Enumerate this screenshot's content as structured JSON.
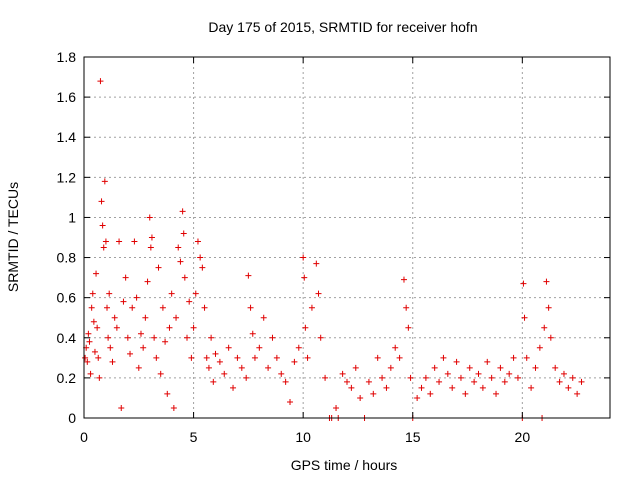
{
  "chart_data": {
    "type": "scatter",
    "title": "Day 175 of 2015, SRMTID for receiver hofn",
    "xlabel": "GPS time / hours",
    "ylabel": "SRMTID / TECUs",
    "xlim": [
      0,
      24
    ],
    "ylim": [
      0,
      1.8
    ],
    "xticks": [
      0,
      5,
      10,
      15,
      20
    ],
    "yticks": [
      0,
      0.2,
      0.4,
      0.6,
      0.8,
      1,
      1.2,
      1.4,
      1.6,
      1.8
    ],
    "ytick_labels": [
      "0",
      "0.2",
      "0.4",
      "0.6",
      "0.8",
      "1",
      "1.2",
      "1.4",
      "1.6",
      "1.8"
    ],
    "grid": true,
    "marker": "+",
    "color": "#e00000",
    "series": [
      {
        "name": "SRMTID",
        "points": [
          [
            0.05,
            0.3
          ],
          [
            0.1,
            0.35
          ],
          [
            0.15,
            0.28
          ],
          [
            0.2,
            0.42
          ],
          [
            0.25,
            0.38
          ],
          [
            0.3,
            0.22
          ],
          [
            0.35,
            0.55
          ],
          [
            0.4,
            0.62
          ],
          [
            0.45,
            0.48
          ],
          [
            0.5,
            0.33
          ],
          [
            0.55,
            0.72
          ],
          [
            0.6,
            0.45
          ],
          [
            0.65,
            0.3
          ],
          [
            0.7,
            0.2
          ],
          [
            0.75,
            1.68
          ],
          [
            0.8,
            1.08
          ],
          [
            0.85,
            0.96
          ],
          [
            0.9,
            0.85
          ],
          [
            0.95,
            1.18
          ],
          [
            1.0,
            0.88
          ],
          [
            1.05,
            0.55
          ],
          [
            1.1,
            0.4
          ],
          [
            1.15,
            0.62
          ],
          [
            1.2,
            0.35
          ],
          [
            1.3,
            0.28
          ],
          [
            1.4,
            0.5
          ],
          [
            1.5,
            0.45
          ],
          [
            1.6,
            0.88
          ],
          [
            1.7,
            0.05
          ],
          [
            1.8,
            0.58
          ],
          [
            1.9,
            0.7
          ],
          [
            2.0,
            0.4
          ],
          [
            2.1,
            0.32
          ],
          [
            2.2,
            0.55
          ],
          [
            2.3,
            0.88
          ],
          [
            2.4,
            0.6
          ],
          [
            2.5,
            0.25
          ],
          [
            2.6,
            0.42
          ],
          [
            2.7,
            0.35
          ],
          [
            2.8,
            0.5
          ],
          [
            2.9,
            0.68
          ],
          [
            3.0,
            1.0
          ],
          [
            3.05,
            0.85
          ],
          [
            3.1,
            0.9
          ],
          [
            3.2,
            0.4
          ],
          [
            3.3,
            0.3
          ],
          [
            3.4,
            0.75
          ],
          [
            3.5,
            0.22
          ],
          [
            3.6,
            0.55
          ],
          [
            3.7,
            0.38
          ],
          [
            3.8,
            0.12
          ],
          [
            3.9,
            0.45
          ],
          [
            4.0,
            0.62
          ],
          [
            4.1,
            0.05
          ],
          [
            4.2,
            0.5
          ],
          [
            4.3,
            0.85
          ],
          [
            4.4,
            0.78
          ],
          [
            4.5,
            1.03
          ],
          [
            4.55,
            0.92
          ],
          [
            4.6,
            0.7
          ],
          [
            4.7,
            0.4
          ],
          [
            4.8,
            0.58
          ],
          [
            4.9,
            0.3
          ],
          [
            5.0,
            0.45
          ],
          [
            5.1,
            0.62
          ],
          [
            5.2,
            0.88
          ],
          [
            5.3,
            0.8
          ],
          [
            5.4,
            0.75
          ],
          [
            5.5,
            0.55
          ],
          [
            5.6,
            0.3
          ],
          [
            5.7,
            0.25
          ],
          [
            5.8,
            0.4
          ],
          [
            5.9,
            0.18
          ],
          [
            6.0,
            0.32
          ],
          [
            6.2,
            0.28
          ],
          [
            6.4,
            0.22
          ],
          [
            6.6,
            0.35
          ],
          [
            6.8,
            0.15
          ],
          [
            7.0,
            0.3
          ],
          [
            7.2,
            0.25
          ],
          [
            7.4,
            0.2
          ],
          [
            7.5,
            0.71
          ],
          [
            7.6,
            0.55
          ],
          [
            7.7,
            0.42
          ],
          [
            7.8,
            0.3
          ],
          [
            8.0,
            0.35
          ],
          [
            8.2,
            0.5
          ],
          [
            8.4,
            0.25
          ],
          [
            8.6,
            0.4
          ],
          [
            8.8,
            0.3
          ],
          [
            9.0,
            0.22
          ],
          [
            9.2,
            0.18
          ],
          [
            9.4,
            0.08
          ],
          [
            9.6,
            0.28
          ],
          [
            9.8,
            0.35
          ],
          [
            10.0,
            0.8
          ],
          [
            10.05,
            0.7
          ],
          [
            10.1,
            0.45
          ],
          [
            10.2,
            0.3
          ],
          [
            10.4,
            0.55
          ],
          [
            10.6,
            0.77
          ],
          [
            10.7,
            0.62
          ],
          [
            10.8,
            0.4
          ],
          [
            11.0,
            0.2
          ],
          [
            11.2,
            0.0
          ],
          [
            11.3,
            0.0
          ],
          [
            11.5,
            0.05
          ],
          [
            11.6,
            0.0
          ],
          [
            11.8,
            0.22
          ],
          [
            12.0,
            0.18
          ],
          [
            12.2,
            0.15
          ],
          [
            12.4,
            0.25
          ],
          [
            12.6,
            0.1
          ],
          [
            12.8,
            0.0
          ],
          [
            13.0,
            0.18
          ],
          [
            13.2,
            0.12
          ],
          [
            13.4,
            0.3
          ],
          [
            13.6,
            0.2
          ],
          [
            13.8,
            0.15
          ],
          [
            14.0,
            0.25
          ],
          [
            14.2,
            0.35
          ],
          [
            14.4,
            0.3
          ],
          [
            14.6,
            0.69
          ],
          [
            14.7,
            0.55
          ],
          [
            14.8,
            0.45
          ],
          [
            14.9,
            0.2
          ],
          [
            15.0,
            0.0
          ],
          [
            15.2,
            0.1
          ],
          [
            15.4,
            0.15
          ],
          [
            15.6,
            0.2
          ],
          [
            15.8,
            0.12
          ],
          [
            16.0,
            0.25
          ],
          [
            16.2,
            0.18
          ],
          [
            16.4,
            0.3
          ],
          [
            16.6,
            0.22
          ],
          [
            16.8,
            0.15
          ],
          [
            17.0,
            0.28
          ],
          [
            17.2,
            0.2
          ],
          [
            17.4,
            0.12
          ],
          [
            17.6,
            0.25
          ],
          [
            17.8,
            0.18
          ],
          [
            18.0,
            0.22
          ],
          [
            18.2,
            0.15
          ],
          [
            18.4,
            0.28
          ],
          [
            18.6,
            0.2
          ],
          [
            18.8,
            0.12
          ],
          [
            19.0,
            0.25
          ],
          [
            19.2,
            0.18
          ],
          [
            19.4,
            0.22
          ],
          [
            19.6,
            0.3
          ],
          [
            19.8,
            0.2
          ],
          [
            20.0,
            0.0
          ],
          [
            20.05,
            0.67
          ],
          [
            20.1,
            0.5
          ],
          [
            20.2,
            0.3
          ],
          [
            20.4,
            0.15
          ],
          [
            20.6,
            0.25
          ],
          [
            20.8,
            0.35
          ],
          [
            20.9,
            0.0
          ],
          [
            21.0,
            0.45
          ],
          [
            21.1,
            0.68
          ],
          [
            21.2,
            0.55
          ],
          [
            21.3,
            0.4
          ],
          [
            21.5,
            0.25
          ],
          [
            21.7,
            0.18
          ],
          [
            21.9,
            0.22
          ],
          [
            22.1,
            0.15
          ],
          [
            22.3,
            0.2
          ],
          [
            22.5,
            0.12
          ],
          [
            22.7,
            0.18
          ]
        ]
      }
    ]
  }
}
